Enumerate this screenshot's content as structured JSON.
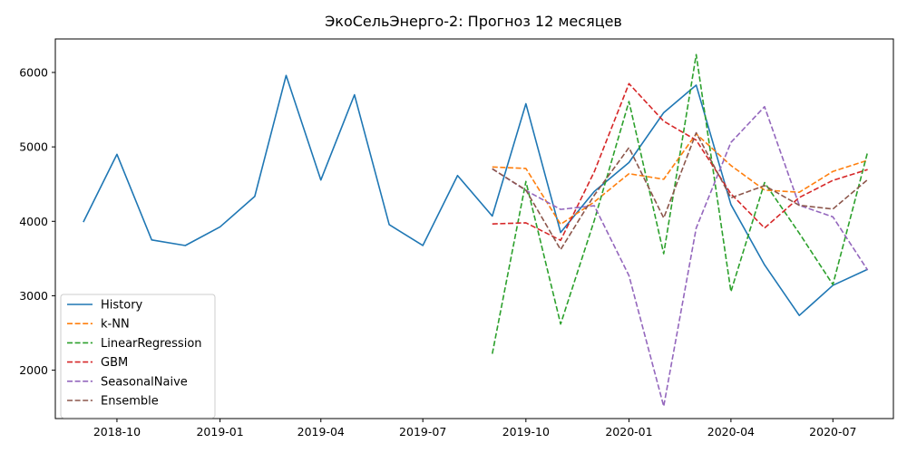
{
  "chart_data": {
    "type": "line",
    "title": "ЭкоСельЭнерго-2: Прогноз 12 месяцев",
    "xlabel": "",
    "ylabel": "",
    "x_tick_labels": [
      "2018-10",
      "2019-01",
      "2019-04",
      "2019-07",
      "2019-10",
      "2020-01",
      "2020-04",
      "2020-07"
    ],
    "y_tick_labels": [
      "2000",
      "3000",
      "4000",
      "5000",
      "6000"
    ],
    "y_ticks": [
      2000,
      3000,
      4000,
      5000,
      6000
    ],
    "ylim": [
      1350,
      6450
    ],
    "xlim": [
      "2018-08-07",
      "2020-08-24"
    ],
    "grid": false,
    "legend_position": "lower-left",
    "series": [
      {
        "name": "History",
        "color": "#1f77b4",
        "dash": "solid",
        "x": [
          "2018-09-01",
          "2018-10-01",
          "2018-11-01",
          "2018-12-01",
          "2019-01-01",
          "2019-02-01",
          "2019-03-01",
          "2019-04-01",
          "2019-05-01",
          "2019-06-01",
          "2019-07-01",
          "2019-08-01",
          "2019-09-01",
          "2019-10-01",
          "2019-11-01",
          "2019-12-01",
          "2020-01-01",
          "2020-02-01",
          "2020-03-01",
          "2020-04-01",
          "2020-05-01",
          "2020-06-01",
          "2020-07-01",
          "2020-08-01"
        ],
        "values": [
          3990,
          4900,
          3750,
          3675,
          3925,
          4335,
          5960,
          4555,
          5700,
          3955,
          3675,
          4615,
          4070,
          5580,
          3850,
          4400,
          4790,
          5460,
          5830,
          4225,
          3415,
          2735,
          3140,
          3355
        ]
      },
      {
        "name": "k-NN",
        "color": "#ff7f0e",
        "dash": "dashed",
        "x": [
          "2019-09-01",
          "2019-10-01",
          "2019-11-01",
          "2019-12-01",
          "2020-01-01",
          "2020-02-01",
          "2020-03-01",
          "2020-04-01",
          "2020-05-01",
          "2020-06-01",
          "2020-07-01",
          "2020-08-01"
        ],
        "values": [
          4730,
          4710,
          3960,
          4260,
          4640,
          4565,
          5175,
          4750,
          4420,
          4390,
          4670,
          4820
        ]
      },
      {
        "name": "LinearRegression",
        "color": "#2ca02c",
        "dash": "dashed",
        "x": [
          "2019-09-01",
          "2019-10-01",
          "2019-11-01",
          "2019-12-01",
          "2020-01-01",
          "2020-02-01",
          "2020-03-01",
          "2020-04-01",
          "2020-05-01",
          "2020-06-01",
          "2020-07-01",
          "2020-08-01"
        ],
        "values": [
          2220,
          4535,
          2620,
          4010,
          5610,
          3565,
          6240,
          3055,
          4520,
          3840,
          3150,
          4930
        ]
      },
      {
        "name": "GBM",
        "color": "#d62728",
        "dash": "dashed",
        "x": [
          "2019-09-01",
          "2019-10-01",
          "2019-11-01",
          "2019-12-01",
          "2020-01-01",
          "2020-02-01",
          "2020-03-01",
          "2020-04-01",
          "2020-05-01",
          "2020-06-01",
          "2020-07-01",
          "2020-08-01"
        ],
        "values": [
          3965,
          3980,
          3745,
          4665,
          5850,
          5345,
          5090,
          4370,
          3910,
          4320,
          4550,
          4695
        ]
      },
      {
        "name": "SeasonalNaive",
        "color": "#9467bd",
        "dash": "dashed",
        "x": [
          "2019-09-01",
          "2019-10-01",
          "2019-11-01",
          "2019-12-01",
          "2020-01-01",
          "2020-02-01",
          "2020-03-01",
          "2020-04-01",
          "2020-05-01",
          "2020-06-01",
          "2020-07-01",
          "2020-08-01"
        ],
        "values": [
          4705,
          4415,
          4160,
          4210,
          3270,
          1515,
          3910,
          5060,
          5540,
          4215,
          4060,
          3345
        ]
      },
      {
        "name": "Ensemble",
        "color": "#8c564b",
        "dash": "dashed",
        "x": [
          "2019-09-01",
          "2019-10-01",
          "2019-11-01",
          "2019-12-01",
          "2020-01-01",
          "2020-02-01",
          "2020-03-01",
          "2020-04-01",
          "2020-05-01",
          "2020-06-01",
          "2020-07-01",
          "2020-08-01"
        ],
        "values": [
          4705,
          4420,
          3620,
          4350,
          4990,
          4045,
          5190,
          4315,
          4480,
          4215,
          4165,
          4560
        ]
      }
    ]
  }
}
